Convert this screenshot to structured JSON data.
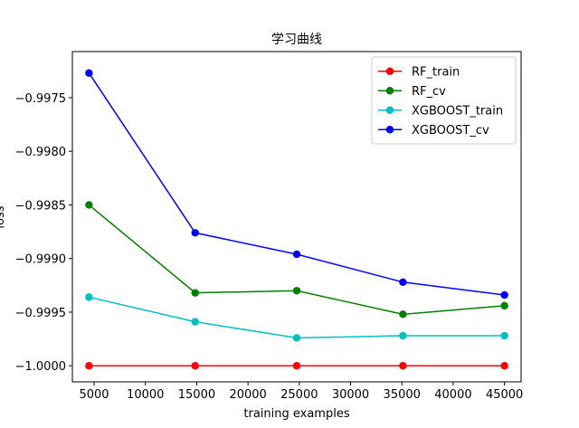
{
  "chart_data": {
    "type": "line",
    "title": "学习曲线",
    "xlabel": "training examples",
    "ylabel": "loss",
    "x": [
      4500,
      14850,
      24750,
      35100,
      45000
    ],
    "xlim": [
      2880,
      46620
    ],
    "ylim": [
      -1.00015,
      -0.99707
    ],
    "xticks": [
      5000,
      10000,
      15000,
      20000,
      25000,
      30000,
      35000,
      40000,
      45000
    ],
    "xtick_labels": [
      "5000",
      "10000",
      "15000",
      "20000",
      "25000",
      "30000",
      "35000",
      "40000",
      "45000"
    ],
    "yticks": [
      -1.0,
      -0.9995,
      -0.999,
      -0.9985,
      -0.998,
      -0.9975
    ],
    "ytick_labels": [
      "−1.0000",
      "−0.9995",
      "−0.9990",
      "−0.9985",
      "−0.9980",
      "−0.9975"
    ],
    "grid": false,
    "legend_position": "top-right",
    "series": [
      {
        "name": "RF_train",
        "color": "#ff0000",
        "marker": "circle",
        "values": [
          -1.0,
          -1.0,
          -1.0,
          -1.0,
          -1.0
        ]
      },
      {
        "name": "RF_cv",
        "color": "#008000",
        "marker": "circle",
        "values": [
          -0.9985,
          -0.99932,
          -0.9993,
          -0.99952,
          -0.99944
        ]
      },
      {
        "name": "XGBOOST_train",
        "color": "#00bfbf",
        "marker": "circle",
        "values": [
          -0.99936,
          -0.99959,
          -0.99974,
          -0.99972,
          -0.99972
        ]
      },
      {
        "name": "XGBOOST_cv",
        "color": "#0000ff",
        "marker": "circle",
        "values": [
          -0.99727,
          -0.99876,
          -0.99896,
          -0.99922,
          -0.99934
        ]
      }
    ]
  }
}
